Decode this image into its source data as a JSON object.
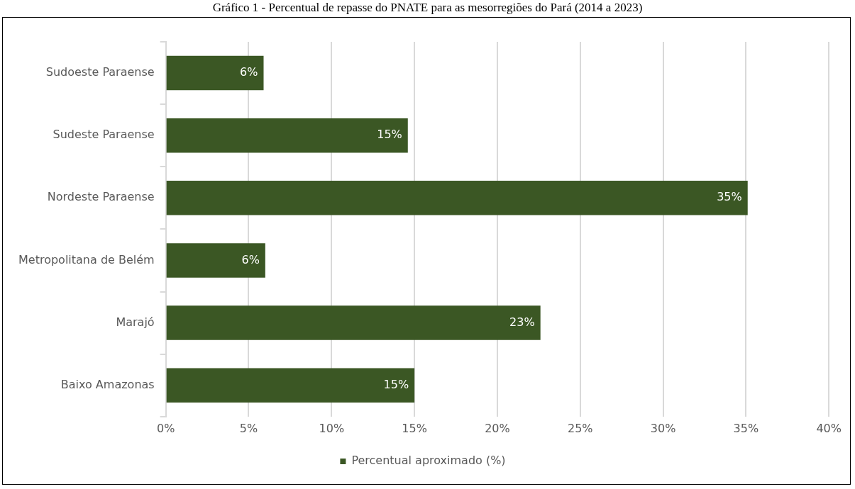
{
  "chart_data": {
    "type": "bar",
    "orientation": "horizontal",
    "title": "Gráfico 1 - Percentual de repasse do PNATE para as mesorregiões do Pará (2014 a 2023)",
    "categories": [
      "Sudoeste Paraense",
      "Sudeste Paraense",
      "Nordeste Paraense",
      "Metropolitana de Belém",
      "Marajó",
      "Baixo Amazonas"
    ],
    "series": [
      {
        "name": "Percentual aproximado (%)",
        "color": "#3b5724",
        "values": [
          5.9,
          14.6,
          35.1,
          6.0,
          22.6,
          15.0
        ],
        "value_labels": [
          "6%",
          "15%",
          "35%",
          "6%",
          "23%",
          "15%"
        ]
      }
    ],
    "xlim": [
      0,
      40
    ],
    "xticks": [
      {
        "value": 0,
        "label": "0%"
      },
      {
        "value": 5,
        "label": "5%"
      },
      {
        "value": 10,
        "label": "10%"
      },
      {
        "value": 15,
        "label": "15%"
      },
      {
        "value": 20,
        "label": "20%"
      },
      {
        "value": 25,
        "label": "25%"
      },
      {
        "value": 30,
        "label": "30%"
      },
      {
        "value": 35,
        "label": "35%"
      },
      {
        "value": 40,
        "label": "40%"
      }
    ],
    "grid": "x",
    "legend": "bottom"
  }
}
